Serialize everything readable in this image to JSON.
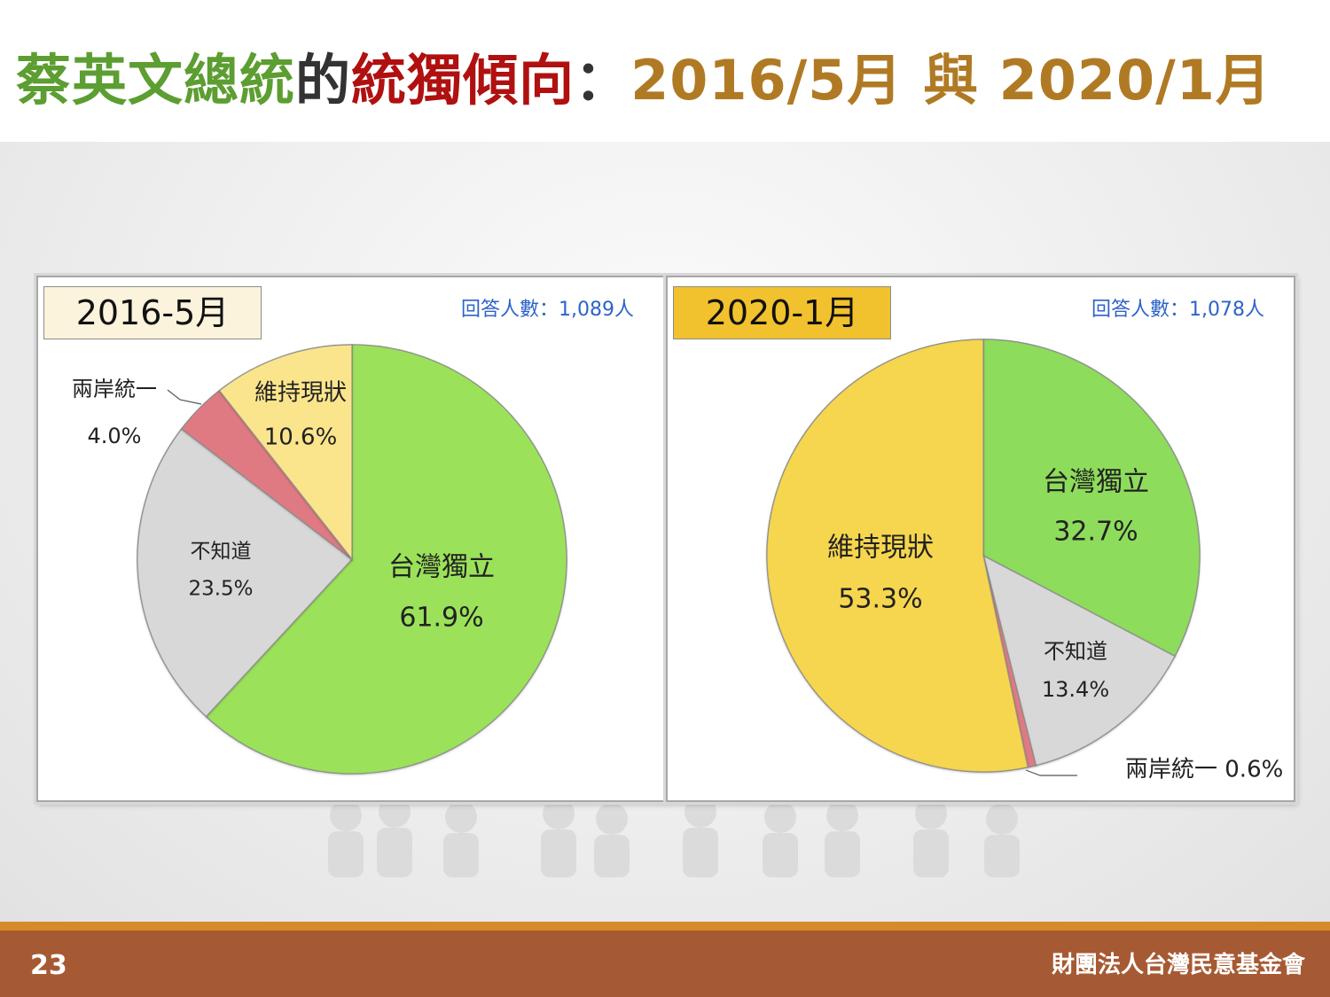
{
  "title": {
    "part1": "蔡英文總統",
    "part2": "的",
    "part3": "統獨傾向",
    "part4": "：",
    "part5": "2016/5月 與 2020/1月",
    "colors": {
      "green": "#5c9e31",
      "dark": "#333333",
      "red": "#b01010",
      "gold": "#b07a24"
    }
  },
  "chart_data": [
    {
      "type": "pie",
      "period": "2016-5月",
      "period_color": "#fbf3dc",
      "respondents": "回答人數：1,089人",
      "slices": [
        {
          "name": "台灣獨立",
          "value": 61.9,
          "label": "61.9%",
          "color": "#9be25a"
        },
        {
          "name": "不知道",
          "value": 23.5,
          "label": "23.5%",
          "color": "#d8d8d8"
        },
        {
          "name": "兩岸統一",
          "value": 4.0,
          "label": "4.0%",
          "color": "#e07a82"
        },
        {
          "name": "維持現狀",
          "value": 10.6,
          "label": "10.6%",
          "color": "#fbe58c"
        }
      ]
    },
    {
      "type": "pie",
      "period": "2020-1月",
      "period_color": "#f2c12e",
      "respondents": "回答人數：1,078人",
      "slices": [
        {
          "name": "台灣獨立",
          "value": 32.7,
          "label": "32.7%",
          "color": "#8edc5c"
        },
        {
          "name": "不知道",
          "value": 13.4,
          "label": "13.4%",
          "color": "#d8d8d8"
        },
        {
          "name": "兩岸統一",
          "value": 0.6,
          "label": "0.6%",
          "color": "#e07a82"
        },
        {
          "name": "維持現狀",
          "value": 53.3,
          "label": "53.3%",
          "color": "#f6d64e"
        }
      ]
    }
  ],
  "footer": {
    "page_number": "23",
    "organization": "財團法人台灣民意基金會"
  }
}
